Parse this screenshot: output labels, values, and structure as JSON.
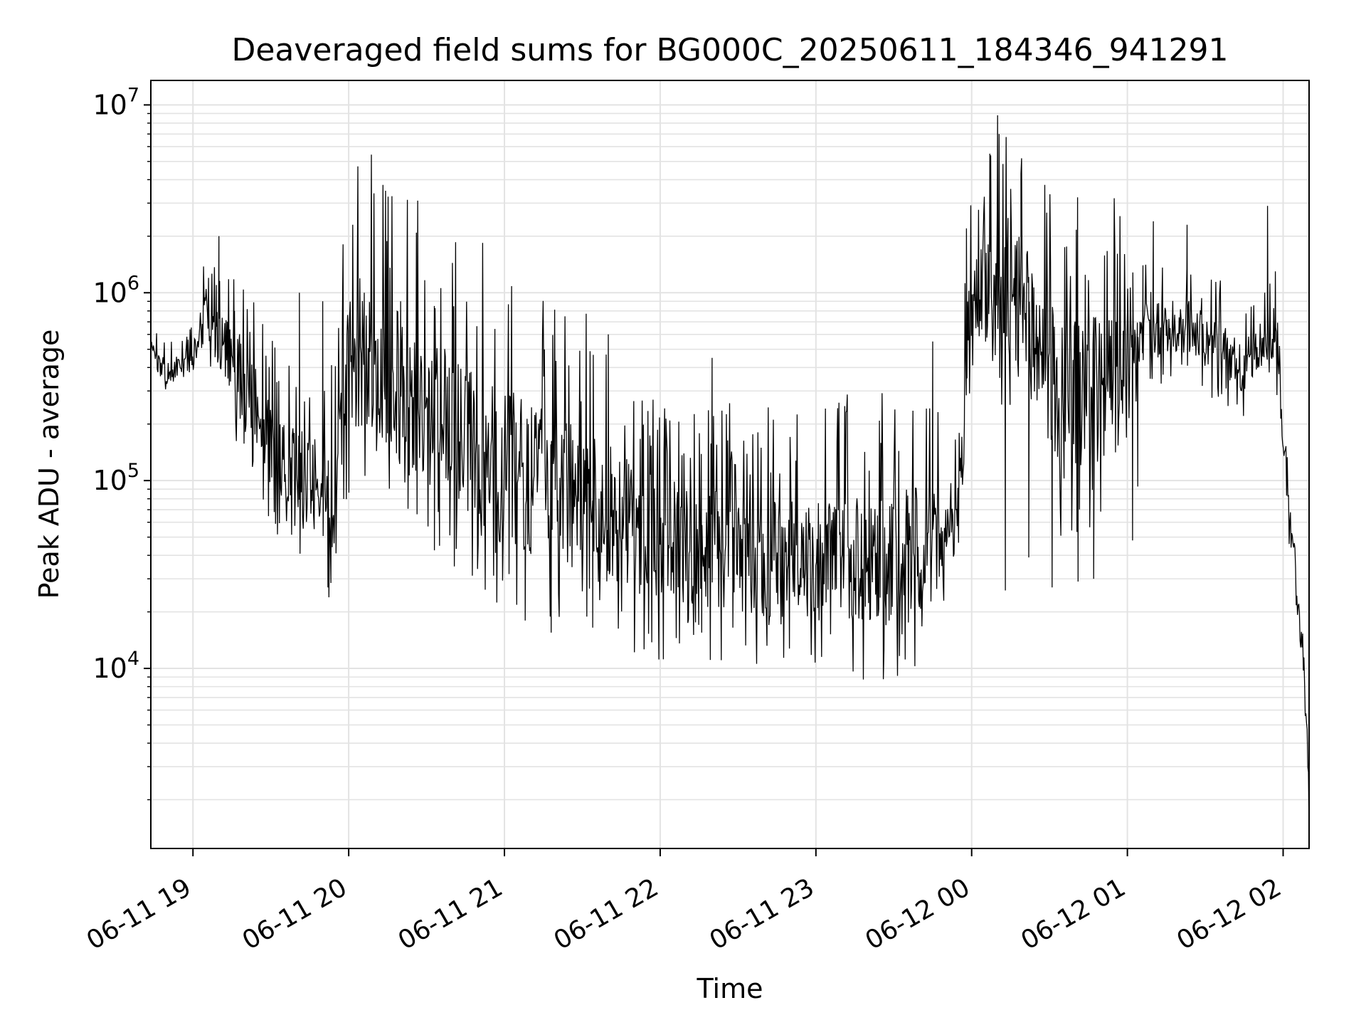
{
  "chart_data": {
    "type": "line",
    "title": "Deaveraged field sums for BG000C_20250611_184346_941291",
    "xlabel": "Time",
    "ylabel": "Peak ADU - average",
    "x_axis": {
      "type": "time",
      "range": [
        "2025-06-11 18:43:46",
        "2025-06-12 02:10:00"
      ],
      "ticks": [
        "2025-06-11 19:00",
        "2025-06-11 20:00",
        "2025-06-11 21:00",
        "2025-06-11 22:00",
        "2025-06-11 23:00",
        "2025-06-12 00:00",
        "2025-06-12 01:00",
        "2025-06-12 02:00"
      ],
      "tick_labels": [
        "06-11 19",
        "06-11 20",
        "06-11 21",
        "06-11 22",
        "06-11 23",
        "06-12 00",
        "06-12 01",
        "06-12 02"
      ]
    },
    "y_axis": {
      "scale": "log",
      "ylim": [
        1100,
        13500000
      ],
      "ticks": [
        10000,
        100000,
        1000000,
        10000000
      ],
      "tick_labels": [
        {
          "base": "10",
          "exp": "4"
        },
        {
          "base": "10",
          "exp": "5"
        },
        {
          "base": "10",
          "exp": "6"
        },
        {
          "base": "10",
          "exp": "7"
        }
      ]
    },
    "grid": true,
    "line_color": "#000000",
    "series": [
      {
        "anchors": [
          {
            "x": "2025-06-11 18:44",
            "y": 500000
          },
          {
            "x": "2025-06-11 18:50",
            "y": 370000
          },
          {
            "x": "2025-06-11 19:00",
            "y": 450000
          },
          {
            "x": "2025-06-11 19:05",
            "y": 800000
          },
          {
            "x": "2025-06-11 19:12",
            "y": 500000
          },
          {
            "x": "2025-06-11 19:20",
            "y": 350000
          },
          {
            "x": "2025-06-11 19:30",
            "y": 150000
          },
          {
            "x": "2025-06-11 19:45",
            "y": 100000
          },
          {
            "x": "2025-06-11 19:55",
            "y": 80000
          },
          {
            "x": "2025-06-11 20:00",
            "y": 500000
          },
          {
            "x": "2025-06-11 20:10",
            "y": 450000
          },
          {
            "x": "2025-06-11 20:20",
            "y": 300000
          },
          {
            "x": "2025-06-11 20:40",
            "y": 180000
          },
          {
            "x": "2025-06-11 21:00",
            "y": 120000
          },
          {
            "x": "2025-06-11 21:20",
            "y": 90000
          },
          {
            "x": "2025-06-11 21:40",
            "y": 70000
          },
          {
            "x": "2025-06-11 22:00",
            "y": 50000
          },
          {
            "x": "2025-06-11 22:30",
            "y": 40000
          },
          {
            "x": "2025-06-11 23:00",
            "y": 38000
          },
          {
            "x": "2025-06-11 23:30",
            "y": 40000
          },
          {
            "x": "2025-06-11 23:50",
            "y": 50000
          },
          {
            "x": "2025-06-11 23:55",
            "y": 70000
          },
          {
            "x": "2025-06-11 23:59",
            "y": 800000
          },
          {
            "x": "2025-06-12 00:10",
            "y": 1200000
          },
          {
            "x": "2025-06-12 00:20",
            "y": 900000
          },
          {
            "x": "2025-06-12 00:25",
            "y": 500000
          },
          {
            "x": "2025-06-12 00:35",
            "y": 300000
          },
          {
            "x": "2025-06-12 00:55",
            "y": 300000
          },
          {
            "x": "2025-06-12 01:05",
            "y": 600000
          },
          {
            "x": "2025-06-12 01:20",
            "y": 700000
          },
          {
            "x": "2025-06-12 01:35",
            "y": 500000
          },
          {
            "x": "2025-06-12 01:45",
            "y": 400000
          },
          {
            "x": "2025-06-12 01:55",
            "y": 600000
          },
          {
            "x": "2025-06-12 01:58",
            "y": 400000
          },
          {
            "x": "2025-06-12 02:01",
            "y": 100000
          },
          {
            "x": "2025-06-12 02:04",
            "y": 40000
          },
          {
            "x": "2025-06-12 02:06",
            "y": 20000
          },
          {
            "x": "2025-06-12 02:08",
            "y": 10000
          },
          {
            "x": "2025-06-12 02:09",
            "y": 6000
          },
          {
            "x": "2025-06-12 02:10",
            "y": 1500
          }
        ],
        "peaks": [
          {
            "x": "2025-06-11 19:06",
            "y": 1200000
          },
          {
            "x": "2025-06-11 19:09",
            "y": 1100000
          },
          {
            "x": "2025-06-11 19:10",
            "y": 2000000
          },
          {
            "x": "2025-06-11 19:16",
            "y": 800000
          },
          {
            "x": "2025-06-11 19:41",
            "y": 1000000
          },
          {
            "x": "2025-06-11 19:50",
            "y": 900000
          },
          {
            "x": "2025-06-11 20:06",
            "y": 1000000
          },
          {
            "x": "2025-06-11 20:20",
            "y": 900000
          },
          {
            "x": "2025-06-11 20:33",
            "y": 850000
          },
          {
            "x": "2025-06-11 21:40",
            "y": 600000
          },
          {
            "x": "2025-06-11 22:20",
            "y": 450000
          },
          {
            "x": "2025-06-11 23:45",
            "y": 550000
          },
          {
            "x": "2025-06-11 23:58",
            "y": 2200000
          },
          {
            "x": "2025-06-12 00:07",
            "y": 5500000
          },
          {
            "x": "2025-06-12 00:10",
            "y": 8800000
          },
          {
            "x": "2025-06-12 00:14",
            "y": 2500000
          },
          {
            "x": "2025-06-12 00:19",
            "y": 4300000
          },
          {
            "x": "2025-06-12 01:06",
            "y": 1400000
          },
          {
            "x": "2025-06-12 01:10",
            "y": 2400000
          },
          {
            "x": "2025-06-12 01:23",
            "y": 2300000
          },
          {
            "x": "2025-06-12 01:54",
            "y": 2900000
          },
          {
            "x": "2025-06-12 01:57",
            "y": 1300000
          }
        ],
        "troughs": [
          {
            "x": "2025-06-11 19:52",
            "y": 27000
          },
          {
            "x": "2025-06-11 20:35",
            "y": 45000
          },
          {
            "x": "2025-06-11 21:08",
            "y": 18000
          },
          {
            "x": "2025-06-11 21:18",
            "y": 15500
          },
          {
            "x": "2025-06-11 21:34",
            "y": 16500
          },
          {
            "x": "2025-06-11 22:16",
            "y": 15500
          },
          {
            "x": "2025-06-11 22:28",
            "y": 16500
          },
          {
            "x": "2025-06-11 23:27",
            "y": 17000
          },
          {
            "x": "2025-06-12 00:13",
            "y": 26000
          },
          {
            "x": "2025-06-12 00:22",
            "y": 39000
          },
          {
            "x": "2025-06-12 00:31",
            "y": 27000
          },
          {
            "x": "2025-06-12 00:41",
            "y": 29000
          },
          {
            "x": "2025-06-12 00:47",
            "y": 30000
          },
          {
            "x": "2025-06-12 01:02",
            "y": 48000
          },
          {
            "x": "2025-06-12 01:04",
            "y": 93000
          }
        ]
      }
    ]
  }
}
